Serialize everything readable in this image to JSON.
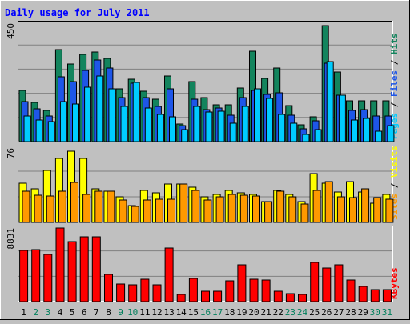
{
  "chart_data": {
    "type": "bar",
    "title": "Daily usage for July 2011",
    "categories": [
      "1",
      "2",
      "3",
      "4",
      "5",
      "6",
      "7",
      "8",
      "9",
      "10",
      "11",
      "12",
      "13",
      "14",
      "15",
      "16",
      "17",
      "18",
      "19",
      "20",
      "21",
      "22",
      "23",
      "24",
      "25",
      "26",
      "27",
      "28",
      "29",
      "30",
      "31"
    ],
    "weekend_days": [
      "2",
      "3",
      "9",
      "10",
      "16",
      "17",
      "23",
      "24",
      "30",
      "31"
    ],
    "panels": [
      {
        "id": "hits",
        "ymax_label": "450",
        "ylim": [
          0,
          450
        ],
        "axis_label_parts": [
          "Pages",
          " / ",
          "Files",
          " / ",
          "Hits"
        ],
        "axis_label_colors": [
          "#00ccff",
          "#000000",
          "#1e56e8",
          "#000000",
          "#13845d"
        ],
        "series": [
          {
            "name": "Hits",
            "color": "#13845d",
            "values": [
              194,
              150,
              119,
              350,
              296,
              331,
              340,
              315,
              200,
              237,
              193,
              161,
              249,
              68,
              229,
              166,
              141,
              141,
              203,
              344,
              239,
              280,
              136,
              64,
              94,
              442,
              265,
              154,
              154,
              154,
              154
            ]
          },
          {
            "name": "Files",
            "color": "#1e56e8",
            "values": [
              153,
              126,
              96,
              246,
              228,
              272,
              310,
              281,
              168,
              222,
              168,
              134,
              200,
              61,
              160,
              121,
              127,
              100,
              167,
              195,
              178,
              184,
              101,
              50,
              79,
              298,
              177,
              120,
              123,
              97,
              96
            ]
          },
          {
            "name": "Pages",
            "color": "#00ccff",
            "values": [
              97,
              83,
              77,
              153,
              144,
              208,
              248,
              202,
              134,
              225,
              129,
              103,
              93,
              47,
              135,
              114,
              116,
              70,
              133,
              202,
              165,
              104,
              70,
              27,
              47,
              304,
              177,
              82,
              88,
              41,
              62
            ]
          }
        ]
      },
      {
        "id": "visits",
        "ymax_label": "76",
        "ylim": [
          0,
          76
        ],
        "axis_label_parts": [
          "Sites",
          " / ",
          "Visits"
        ],
        "axis_label_colors": [
          "#ff9900",
          "#000000",
          "#ffff00"
        ],
        "series": [
          {
            "name": "Visits",
            "color": "#ffff00",
            "values": [
              40,
              34,
              53,
              65,
              73,
              65,
              34,
              32,
              26,
              17,
              33,
              30,
              39,
              39,
              36,
              26,
              29,
              33,
              30,
              29,
              21,
              33,
              29,
              21,
              50,
              40,
              31,
              42,
              31,
              20,
              29
            ]
          },
          {
            "name": "Sites",
            "color": "#ff9900",
            "values": [
              32,
              28,
              27,
              32,
              41,
              29,
              32,
              32,
              23,
              16,
              23,
              24,
              24,
              39,
              33,
              23,
              26,
              29,
              28,
              27,
              21,
              32,
              26,
              19,
              33,
              42,
              26,
              25,
              34,
              25,
              24
            ]
          }
        ]
      },
      {
        "id": "kbytes",
        "ymax_label": "8831",
        "ylim": [
          0,
          8831
        ],
        "axis_label_parts": [
          "KBytes"
        ],
        "axis_label_colors": [
          "#ff0000"
        ],
        "series": [
          {
            "name": "KBytes",
            "color": "#ff0000",
            "values": [
              6147,
              6242,
              5664,
              8831,
              7245,
              7782,
              7750,
              3295,
              2148,
              1983,
              2733,
              2059,
              6432,
              841,
              2765,
              1204,
              1204,
              2521,
              4418,
              2732,
              2554,
              1294,
              932,
              841,
              4708,
              3998,
              4418,
              2552,
              1846,
              1394,
              1394
            ]
          }
        ]
      }
    ],
    "colors": {
      "background": "#c0c0c0",
      "plot_background": "#c0c0c0",
      "gridline": "#808080",
      "title": "#0000ff",
      "weekday_label": "#000000",
      "weekend_label": "#00805c"
    },
    "grid": true
  }
}
